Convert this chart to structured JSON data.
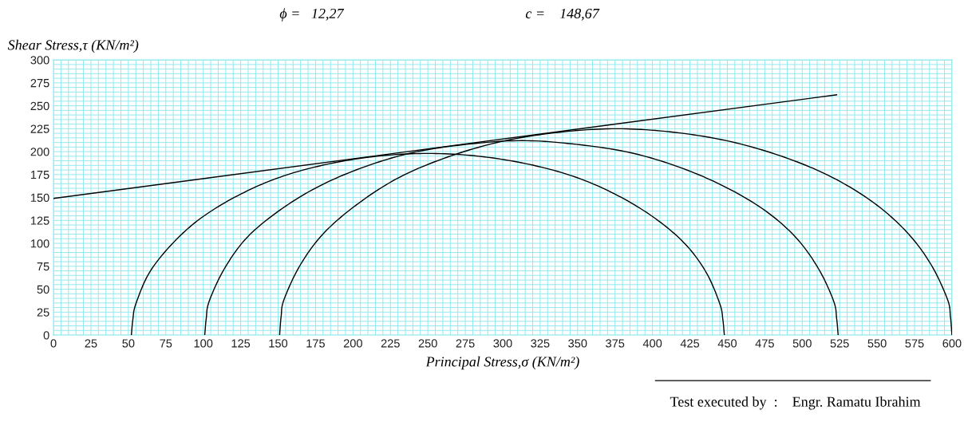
{
  "chart_data": {
    "type": "line",
    "xlabel": "Principal Stress,σ (KN/m²)",
    "ylabel": "Shear Stress,τ (KN/m²)",
    "annotations": [
      "ϕ =   12,27",
      "c =    148,67",
      "Test executed by  :    Engr. Ramatu Ibrahim"
    ],
    "series": [
      {
        "color": "#000000",
        "x": [
          0,
          523
        ],
        "values": [
          149,
          262
        ]
      },
      {
        "color": "#000000",
        "x": [
          52,
          53,
          55,
          64,
          79,
          98,
          123,
          151,
          182,
          216,
          250,
          284,
          318,
          349,
          377,
          402,
          422,
          436,
          445,
          447,
          448
        ],
        "values": [
          0,
          17,
          34,
          68,
          99,
          127,
          152,
          172,
          186,
          195,
          198,
          195,
          186,
          172,
          152,
          127,
          99,
          68,
          34,
          17,
          0
        ]
      },
      {
        "color": "#000000",
        "x": [
          101,
          102,
          104,
          114,
          129,
          151,
          177,
          207,
          240,
          276,
          313,
          349,
          385,
          418,
          448,
          475,
          496,
          511,
          521,
          523,
          524
        ],
        "values": [
          0,
          18,
          37,
          72,
          106,
          136,
          162,
          183,
          199,
          208,
          212,
          208,
          199,
          183,
          162,
          136,
          106,
          72,
          37,
          18,
          0
        ]
      },
      {
        "color": "#000000",
        "x": [
          151,
          152,
          154,
          165,
          181,
          204,
          231,
          263,
          299,
          337,
          376,
          415,
          452,
          488,
          520,
          548,
          570,
          586,
          597,
          599,
          600
        ],
        "values": [
          0,
          20,
          39,
          77,
          112,
          144,
          172,
          194,
          211,
          221,
          225,
          221,
          211,
          194,
          172,
          144,
          112,
          77,
          39,
          20,
          0
        ]
      }
    ],
    "xlim": [
      0,
      600
    ],
    "xticks": [
      0,
      25,
      50,
      75,
      100,
      125,
      150,
      175,
      200,
      225,
      250,
      275,
      300,
      325,
      350,
      375,
      400,
      425,
      450,
      475,
      500,
      525,
      550,
      575,
      600
    ],
    "ylim": [
      0,
      300
    ],
    "yticks": [
      0,
      25,
      50,
      75,
      100,
      125,
      150,
      175,
      200,
      225,
      250,
      275,
      300
    ],
    "grid": true,
    "marker": "none",
    "line_style": "solid"
  }
}
